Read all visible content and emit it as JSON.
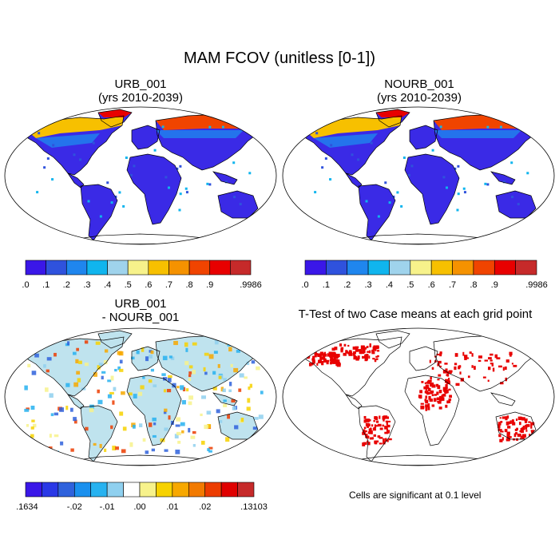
{
  "figure": {
    "title": "MAM FCOV (unitless [0-1])",
    "note": "Cells are significant at 0.1 level"
  },
  "panels": [
    {
      "id": "urb",
      "title_line1": "URB_001",
      "title_line2": "(yrs 2010-2039)",
      "palette": "fcov"
    },
    {
      "id": "nourb",
      "title_line1": "NOURB_001",
      "title_line2": "(yrs 2010-2039)",
      "palette": "fcov"
    },
    {
      "id": "diff",
      "title_line1": "URB_001",
      "title_line2": "- NOURB_001",
      "palette": "diff"
    },
    {
      "id": "ttest",
      "title_line1": "T-Test of two Case means at each grid point",
      "title_line2": "",
      "palette": "sig"
    }
  ],
  "colorbar_fcov": {
    "colors": [
      "#3a17e8",
      "#2f52dd",
      "#1f86ee",
      "#10b5ee",
      "#9fd3ec",
      "#f7f28b",
      "#f7c000",
      "#f59200",
      "#f04400",
      "#e80000",
      "#c62a2a"
    ],
    "labels": [
      ".0",
      ".1",
      ".2",
      ".3",
      ".4",
      ".5",
      ".6",
      ".7",
      ".8",
      ".9",
      ".9986"
    ]
  },
  "colorbar_diff": {
    "colors": [
      "#3a17e8",
      "#2a38e6",
      "#2f62dc",
      "#1a90ee",
      "#27b2f0",
      "#8fd0ef",
      "#ffffff",
      "#f7f28b",
      "#f7d200",
      "#f7a800",
      "#f27a00",
      "#ec3c00",
      "#e00000",
      "#c62a2a"
    ],
    "labels": [
      "-.1634",
      "-.02",
      "-.01",
      ".00",
      ".01",
      ".02",
      ".13103"
    ]
  },
  "colors": {
    "significant": "#e80000"
  }
}
